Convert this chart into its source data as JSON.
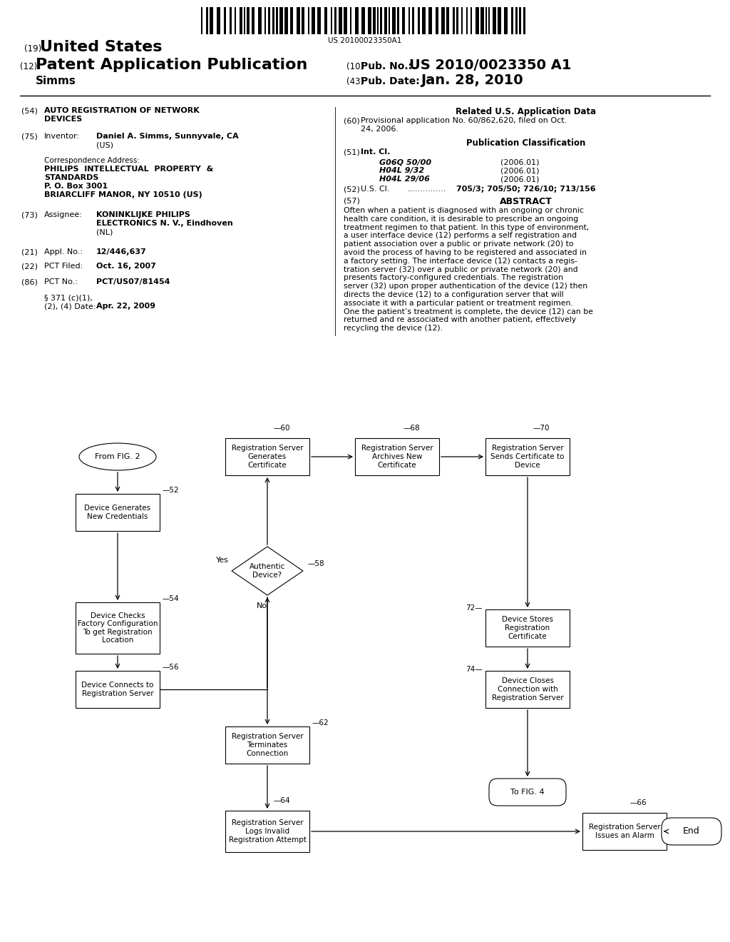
{
  "background_color": "#ffffff",
  "barcode_text": "US 20100023350A1",
  "header": {
    "label19": "(19)",
    "us_text": "United States",
    "label12": "(12)",
    "pat_text": "Patent Application Publication",
    "label10": "(10)",
    "pubno_label": "Pub. No.:",
    "pubno_val": "US 2010/0023350 A1",
    "inventor": "Simms",
    "label43": "(43)",
    "pubdate_label": "Pub. Date:",
    "pubdate_val": "Jan. 28, 2010"
  },
  "left_col": {
    "label54": "(54)",
    "title_line1": "AUTO REGISTRATION OF NETWORK",
    "title_line2": "DEVICES",
    "label75": "(75)",
    "inventor_label": "Inventor:",
    "inventor_val": "Daniel A. Simms, Sunnyvale, CA",
    "inventor_val2": "(US)",
    "corr_addr_label": "Correspondence Address:",
    "corr_addr1": "PHILIPS  INTELLECTUAL  PROPERTY  &",
    "corr_addr2": "STANDARDS",
    "corr_addr3": "P. O. Box 3001",
    "corr_addr4": "BRIARCLIFF MANOR, NY 10510 (US)",
    "label73": "(73)",
    "assignee_label": "Assignee:",
    "assignee_val1": "KONINKLIJKE PHILIPS",
    "assignee_val2": "ELECTRONICS N. V., Eindhoven",
    "assignee_val3": "(NL)",
    "label21": "(21)",
    "appl_label": "Appl. No.:",
    "appl_val": "12/446,637",
    "label22": "(22)",
    "pct_filed_label": "PCT Filed:",
    "pct_filed_val": "Oct. 16, 2007",
    "label86": "(86)",
    "pct_no_label": "PCT No.:",
    "pct_no_val": "PCT/US07/81454",
    "section371": "§ 371 (c)(1),",
    "section371b": "(2), (4) Date:",
    "section371_val": "Apr. 22, 2009"
  },
  "right_col": {
    "related_header": "Related U.S. Application Data",
    "label60": "(60)",
    "provisional_text": "Provisional application No. 60/862,620, filed on Oct.\n24, 2006.",
    "pub_class_header": "Publication Classification",
    "label51": "(51)",
    "intcl_label": "Int. Cl.",
    "intcl1_code": "G06Q 50/00",
    "intcl1_year": "(2006.01)",
    "intcl2_code": "H04L 9/32",
    "intcl2_year": "(2006.01)",
    "intcl3_code": "H04L 29/06",
    "intcl3_year": "(2006.01)",
    "label52": "(52)",
    "uscl_label": "U.S. Cl.",
    "uscl_dots": "...............",
    "uscl_val": "705/3; 705/50; 726/10; 713/156",
    "label57": "(57)",
    "abstract_header": "ABSTRACT",
    "abstract_text": "Often when a patient is diagnosed with an ongoing or chronic\nhealth care condition, it is desirable to prescribe an ongoing\ntreatment regimen to that patient. In this type of environment,\na user interface device (12) performs a self registration and\npatient association over a public or private network (20) to\navoid the process of having to be registered and associated in\na factory setting. The interface device (12) contacts a regis-\ntration server (32) over a public or private network (20) and\npresents factory-configured credentials. The registration\nserver (32) upon proper authentication of the device (12) then\ndirects the device (12) to a configuration server that will\nassociate it with a particular patient or treatment regimen.\nOne the patient’s treatment is complete, the device (12) can be\nreturned and re associated with another patient, effectively\nrecycling the device (12)."
  },
  "flowchart": {
    "from_fig2": "From FIG. 2",
    "node52_label": "Device Generates\nNew Credentials",
    "node52_num": "52",
    "node54_label": "Device Checks\nFactory Configuration\nTo get Registration\nLocation",
    "node54_num": "54",
    "node56_label": "Device Connects to\nRegistration Server",
    "node56_num": "56",
    "node60_label": "Registration Server\nGenerates\nCertificate",
    "node60_num": "60",
    "node68_label": "Registration Server\nArchives New\nCertificate",
    "node68_num": "68",
    "node70_label": "Registration Server\nSends Certificate to\nDevice",
    "node70_num": "70",
    "node58_label": "Authentic\nDevice?",
    "node58_num": "58",
    "node62_label": "Registration Server\nTerminates\nConnection",
    "node62_num": "62",
    "node72_label": "Device Stores\nRegistration\nCertificate",
    "node72_num": "72",
    "node74_label": "Device Closes\nConnection with\nRegistration Server",
    "node74_num": "74",
    "node64_label": "Registration Server\nLogs Invalid\nRegistration Attempt",
    "node64_num": "64",
    "node66_label": "Registration Server\nIssues an Alarm",
    "node66_num": "66",
    "node_to_fig4": "To FIG. 4",
    "node_end": "End",
    "yes_label": "Yes",
    "no_label": "No"
  }
}
